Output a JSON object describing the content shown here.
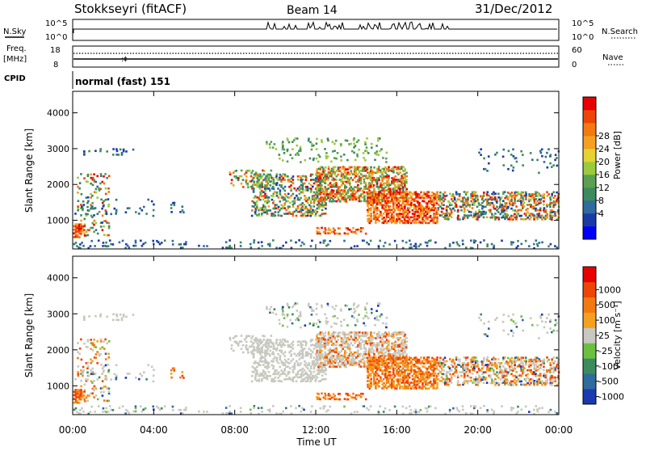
{
  "header": {
    "station": "Stokkseyri (fitACF)",
    "beam": "Beam 14",
    "date": "31/Dec/2012"
  },
  "top_panels": {
    "nsky_label": "N.Sky",
    "nsky_ticks": [
      "10^5",
      "10^0"
    ],
    "nsearch_label": "N.Search",
    "nsearch_ticks": [
      "10^5",
      "10^0"
    ],
    "freq_label": "Freq.",
    "freq_unit": "[MHz]",
    "freq_ticks": [
      "18",
      "8"
    ],
    "nave_label": "Nave",
    "nave_ticks": [
      "60",
      "0"
    ],
    "cpid_label": "CPID",
    "cpid_value": "normal (fast) 151"
  },
  "chart_data": [
    {
      "type": "heatmap",
      "name": "power-panel",
      "ylabel": "Slant Range [km]",
      "ylim": [
        200,
        4600
      ],
      "yticks": [
        "1000",
        "2000",
        "3000",
        "4000"
      ],
      "xlim": [
        0,
        24
      ],
      "colorbar": {
        "label": "Power [dB]",
        "ticks": [
          "28",
          "24",
          "20",
          "16",
          "12",
          "8",
          "4"
        ],
        "colors": [
          "#0000ff",
          "#1a3aa8",
          "#2f6b9c",
          "#3d8a5e",
          "#5aa050",
          "#9acb3c",
          "#e6d230",
          "#f5a020",
          "#f27a10",
          "#ee4408",
          "#e80000"
        ]
      }
    },
    {
      "type": "heatmap",
      "name": "velocity-panel",
      "ylabel": "Slant Range [km]",
      "ylim": [
        200,
        4600
      ],
      "yticks": [
        "1000",
        "2000",
        "3000",
        "4000"
      ],
      "xlim": [
        0,
        24
      ],
      "xticks": [
        "00:00",
        "04:00",
        "08:00",
        "12:00",
        "16:00",
        "20:00",
        "00:00"
      ],
      "xlabel": "Time UT",
      "colorbar": {
        "label": "Velocity [m s⁻¹]",
        "ticks": [
          "1000",
          "500",
          "100",
          "25",
          "-25",
          "-100",
          "-500",
          "-1000"
        ],
        "colors": [
          "#1a3ab0",
          "#2f6b9c",
          "#3d8a5e",
          "#6cc040",
          "#c8c8c0",
          "#f5a020",
          "#f27a10",
          "#ee4408",
          "#e80000"
        ]
      }
    }
  ]
}
